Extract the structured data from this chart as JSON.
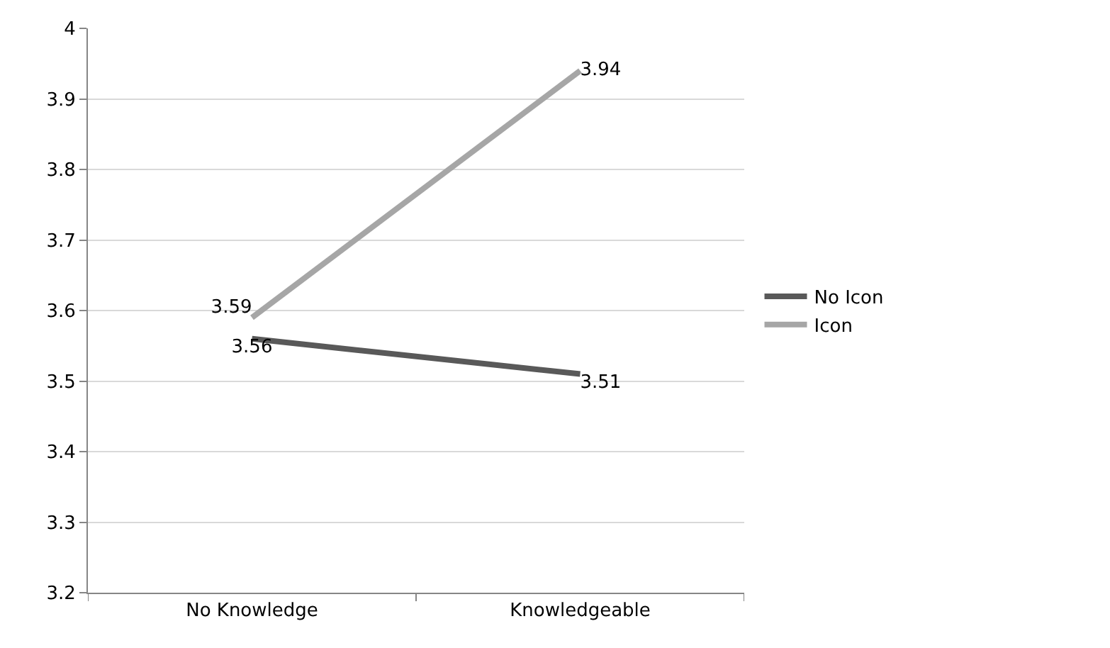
{
  "chart_data": {
    "type": "line",
    "categories": [
      "No Knowledge",
      "Knowledgeable"
    ],
    "series": [
      {
        "name": "No Icon",
        "color": "#595959",
        "values": [
          3.56,
          3.51
        ]
      },
      {
        "name": "Icon",
        "color": "#a6a6a6",
        "values": [
          3.59,
          3.94
        ]
      }
    ],
    "ylim": [
      3.2,
      4
    ],
    "yticks": [
      3.2,
      3.3,
      3.4,
      3.5,
      3.6,
      3.7,
      3.8,
      3.9,
      4
    ],
    "grid": "y",
    "legend": "right",
    "marker": "none",
    "line_style": "solid",
    "data_labels": true
  }
}
